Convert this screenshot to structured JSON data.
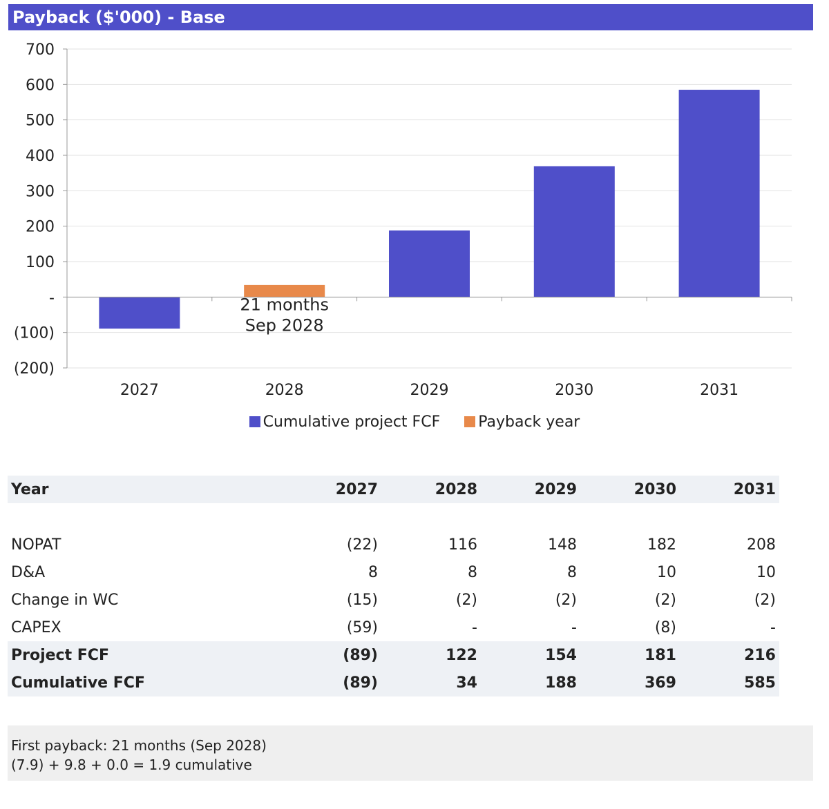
{
  "title": "Payback ($'000) - Base",
  "colors": {
    "primary": "#4f4fc9",
    "payback": "#e8894a",
    "header_bg": "#eef1f5"
  },
  "chart_data": {
    "type": "bar",
    "categories": [
      "2027",
      "2028",
      "2029",
      "2030",
      "2031"
    ],
    "series": [
      {
        "name": "Cumulative project FCF",
        "values": [
          -89,
          34,
          188,
          369,
          585
        ],
        "color": "#4f4fc9"
      },
      {
        "name": "Payback year",
        "values": [
          null,
          34,
          null,
          null,
          null
        ],
        "color": "#e8894a"
      }
    ],
    "ylim": [
      -200,
      700
    ],
    "yticks": [
      700,
      600,
      500,
      400,
      300,
      200,
      100,
      0,
      -100,
      -200
    ],
    "ytick_labels": [
      "700",
      "600",
      "500",
      "400",
      "300",
      "200",
      "100",
      "-",
      "(100)",
      "(200)"
    ],
    "annotation": {
      "category": "2028",
      "lines": [
        "21 months",
        "Sep 2028"
      ]
    },
    "legend": [
      "Cumulative project FCF",
      "Payback year"
    ],
    "legend_position": "bottom",
    "grid": true
  },
  "table": {
    "header": {
      "label": "Year",
      "years": [
        "2027",
        "2028",
        "2029",
        "2030",
        "2031"
      ]
    },
    "rows": [
      {
        "label": "NOPAT",
        "values": [
          "(22)",
          "116",
          "148",
          "182",
          "208"
        ],
        "bold": false
      },
      {
        "label": "D&A",
        "values": [
          "8",
          "8",
          "8",
          "10",
          "10"
        ],
        "bold": false
      },
      {
        "label": "Change in WC",
        "values": [
          "(15)",
          "(2)",
          "(2)",
          "(2)",
          "(2)"
        ],
        "bold": false
      },
      {
        "label": "CAPEX",
        "values": [
          "(59)",
          "-",
          "-",
          "(8)",
          "-"
        ],
        "bold": false
      },
      {
        "label": "Project FCF",
        "values": [
          "(89)",
          "122",
          "154",
          "181",
          "216"
        ],
        "bold": true
      },
      {
        "label": "Cumulative FCF",
        "values": [
          "(89)",
          "34",
          "188",
          "369",
          "585"
        ],
        "bold": true
      }
    ]
  },
  "note": {
    "line1": "First payback: 21 months (Sep 2028)",
    "line2": "(7.9) + 9.8 + 0.0 = 1.9 cumulative"
  }
}
